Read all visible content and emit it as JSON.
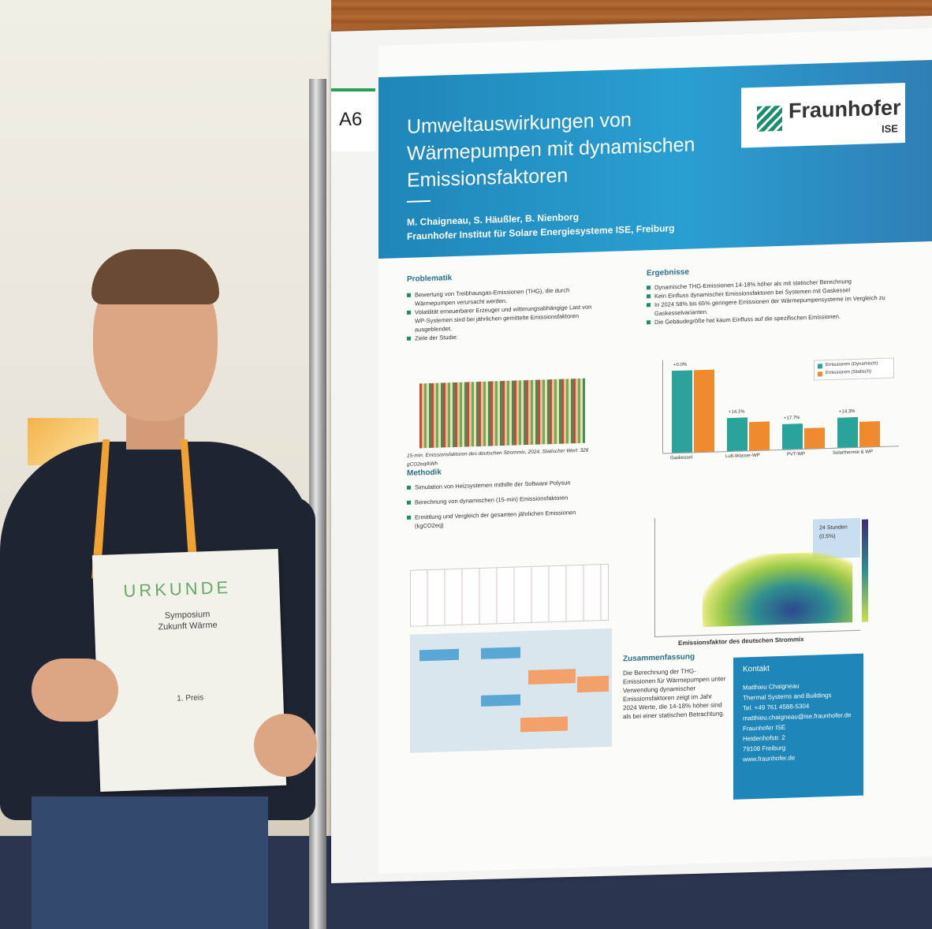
{
  "sign": {
    "label": "A6"
  },
  "poster": {
    "title_lines": [
      "Umweltauswirkungen von",
      "Wärmepumpen mit dynamischen",
      "Emissionsfaktoren"
    ],
    "authors": "M. Chaigneau, S. Häußler, B. Nienborg",
    "institute": "Fraunhofer Institut für Solare Energiesysteme ISE, Freiburg",
    "logo_name": "Fraunhofer",
    "logo_sub": "ISE",
    "sec_problematik": "Problematik",
    "problematik": [
      "Bewertung von Treibhausgas-Emissionen (THG), die durch Wärmepumpen verursacht werden.",
      "Volatilität erneuerbarer Erzeuger und witterungsabhängige Last von WP-Systemen sind bei jährlichen gemittelte Emissionsfaktoren ausgeblendet.",
      "Ziele der Studie:"
    ],
    "heat_caption": "15-min. Emissionsfaktoren des deutschen Strommix, 2024. Statischer Wert: 326 gCO2eq/kWh",
    "sec_methodik": "Methodik",
    "methodik": [
      "Simulation von Heizsystemen mithilfe der Software Polysun",
      "Berechnung von dynamischen (15-min) Emissionsfaktoren",
      "Ermittlung und Vergleich der gesamten jährlichen Emissionen (kgCO2eq)"
    ],
    "sec_ergebnisse": "Ergebnisse",
    "ergebnisse": [
      "Dynamische THG-Emissionen 14-18% höher als mit statischer Berechnung",
      "Kein Einfluss dynamischer Emissionsfaktoren bei Systemen mit Gaskessel",
      "In 2024 58% bis 65% geringere Emissionen der Wärmepumpensysteme im Vergleich zu Gaskesselvarianten.",
      "Die Gebäudegröße hat kaum Einfluss auf die spezifischen Emissionen."
    ],
    "legend": [
      "Emissionen (Dynamisch)",
      "Emissionen (Statisch)"
    ],
    "bar_labels": [
      "Gaskessel",
      "Luft-Wasser-WP",
      "PVT-WP",
      "Solarthermie & WP"
    ],
    "bar_pct": [
      "+0.0%",
      "+14.1%",
      "+17.7%",
      "+14.3%"
    ],
    "scatter_note": "24 Stunden (0.5%)",
    "scatter_xlabel": "Emissionsfaktor des deutschen Strommix",
    "sec_zusammenfassung": "Zusammenfassung",
    "zusammenfassung": "Die Berechnung der THG-Emissionen für Wärmepumpen unter Verwendung dynamischer Emissionsfaktoren zeigt im Jahr 2024 Werte, die 14-18% höher sind als bei einer statischen Betrachtung.",
    "kontakt": {
      "head": "Kontakt",
      "lines": [
        "Matthieu Chaigneau",
        "Thermal Systems and Buildings",
        "Tel. +49 761 4588-5304",
        "matthieu.chaigneau@ise.fraunhofer.de",
        "Fraunhofer ISE",
        "Heidenhofstr. 2",
        "79108 Freiburg",
        "www.fraunhofer.de"
      ]
    }
  },
  "certificate": {
    "title": "URKUNDE",
    "line1": "Symposium",
    "line2": "Zukunft Wärme",
    "prize": "1. Preis"
  },
  "colors": {
    "dyn": "#2aa39a",
    "stat": "#ef8a2e",
    "header": "#2a9fd2",
    "fraunhofer_green": "#1a8f6e"
  }
}
